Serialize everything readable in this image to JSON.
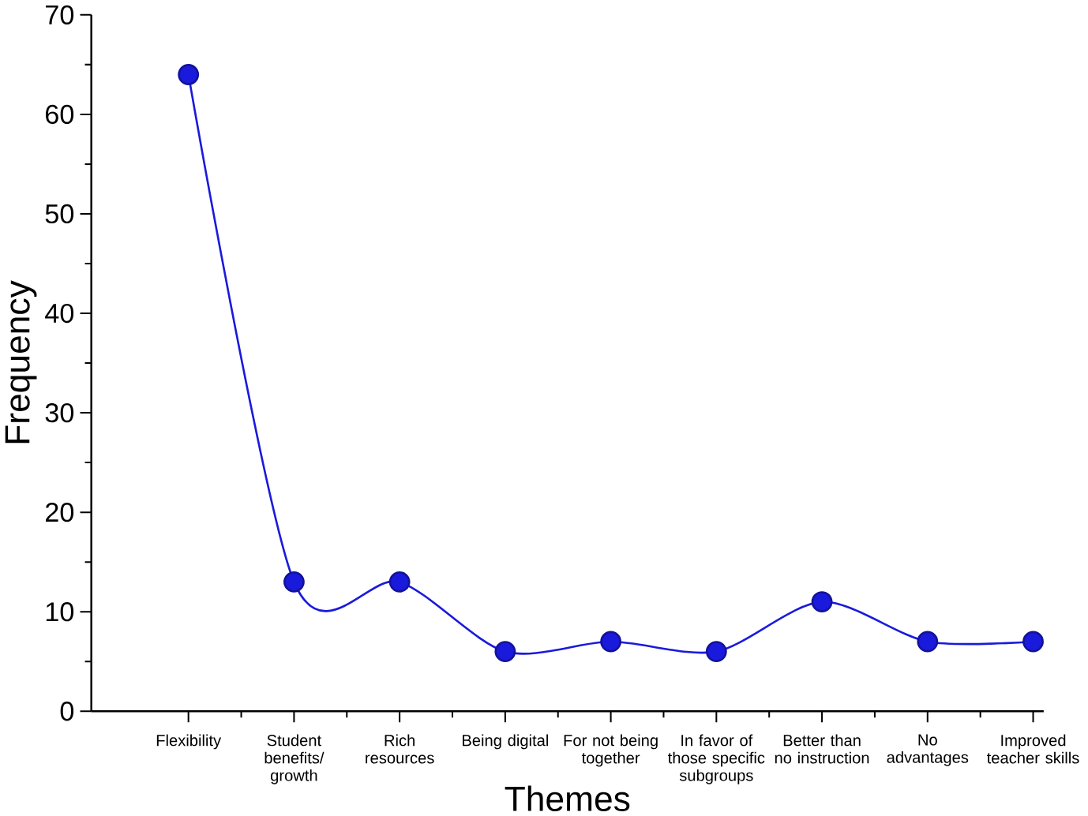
{
  "chart_data": {
    "type": "line",
    "xlabel": "Themes",
    "ylabel": "Frequency",
    "categories": [
      "Flexibility",
      "Student benefits/ growth",
      "Rich resources",
      "Being digital",
      "For not being together",
      "In favor of those specific subgroups",
      "Better than no instruction",
      "No advantages",
      "Improved teacher skills"
    ],
    "values": [
      64,
      13,
      13,
      6,
      7,
      6,
      11,
      7,
      7
    ],
    "color": "#1a1adc",
    "marker": "circle",
    "line_style": "solid",
    "grid": false,
    "ylim": [
      0,
      70
    ],
    "yticks": [
      0,
      10,
      20,
      30,
      40,
      50,
      60,
      70
    ]
  }
}
